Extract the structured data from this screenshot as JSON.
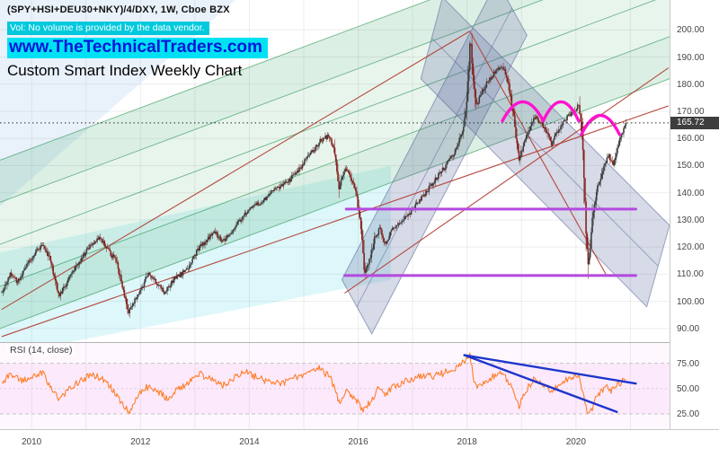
{
  "header": {
    "symbol_line": "(SPY+HSI+DEU30+NKY)/4/DXY, 1W, Cboe BZX",
    "vol_note": "Vol: No volume is provided by the data vendor.",
    "website": "www.TheTechnicalTraders.com",
    "chart_title": "Custom Smart Index Weekly Chart"
  },
  "rsi_label": "RSI (14, close)",
  "price_axis": {
    "ticks": [
      "200.00",
      "190.00",
      "180.00",
      "170.00",
      "160.00",
      "150.00",
      "140.00",
      "130.00",
      "120.00",
      "110.00",
      "100.00",
      "90.00"
    ],
    "last_price": "165.72"
  },
  "rsi_axis": {
    "ticks": [
      "75.00",
      "50.00",
      "25.00"
    ]
  },
  "time_axis": {
    "ticks": [
      "2010",
      "2012",
      "2014",
      "2016",
      "2018",
      "2020"
    ]
  },
  "colors": {
    "candle_up": "#3c3c3c",
    "candle_down": "#84231e",
    "rsi_line": "#ff7f2a",
    "rsi_trend_blue": "#1e36cc",
    "sr_purple": "#b44ae0",
    "arc_magenta": "#ff12cf",
    "red_trend": "#b03a2e",
    "green_channel": "#22a052",
    "blue_channel": "#56669b",
    "cyan_band": "#00becf",
    "badge_bg": "#3e3e3e",
    "header_cyan": "#00e2f4",
    "website_blue": "#0016d9"
  },
  "chart_data": {
    "type": "candlestick",
    "title": "Custom Smart Index Weekly Chart",
    "symbol": "(SPY+HSI+DEU30+NKY)/4/DXY",
    "timeframe": "1W",
    "exchange": "Cboe BZX",
    "xlim": [
      2009.42,
      2021.72
    ],
    "ylim": [
      85,
      211
    ],
    "rsi_ylim": [
      10,
      95
    ],
    "last_close": 165.72,
    "price_keypoints": [
      [
        2009.45,
        103
      ],
      [
        2009.6,
        110
      ],
      [
        2009.75,
        107
      ],
      [
        2009.9,
        113
      ],
      [
        2010.05,
        117
      ],
      [
        2010.2,
        121
      ],
      [
        2010.35,
        115
      ],
      [
        2010.5,
        102
      ],
      [
        2010.65,
        107
      ],
      [
        2010.8,
        112
      ],
      [
        2010.95,
        117
      ],
      [
        2011.1,
        121
      ],
      [
        2011.25,
        124
      ],
      [
        2011.4,
        119
      ],
      [
        2011.55,
        115
      ],
      [
        2011.7,
        103
      ],
      [
        2011.78,
        96
      ],
      [
        2011.9,
        101
      ],
      [
        2012.0,
        104
      ],
      [
        2012.15,
        110
      ],
      [
        2012.3,
        107
      ],
      [
        2012.45,
        103
      ],
      [
        2012.6,
        108
      ],
      [
        2012.75,
        110
      ],
      [
        2012.9,
        113
      ],
      [
        2013.05,
        119
      ],
      [
        2013.2,
        122
      ],
      [
        2013.35,
        126
      ],
      [
        2013.5,
        122
      ],
      [
        2013.65,
        125
      ],
      [
        2013.8,
        129
      ],
      [
        2013.95,
        133
      ],
      [
        2014.1,
        135
      ],
      [
        2014.25,
        137
      ],
      [
        2014.4,
        140
      ],
      [
        2014.55,
        142
      ],
      [
        2014.7,
        144
      ],
      [
        2014.85,
        147
      ],
      [
        2015.0,
        151
      ],
      [
        2015.15,
        155
      ],
      [
        2015.3,
        159
      ],
      [
        2015.45,
        161
      ],
      [
        2015.55,
        157
      ],
      [
        2015.65,
        142
      ],
      [
        2015.75,
        149
      ],
      [
        2015.85,
        146
      ],
      [
        2015.95,
        141
      ],
      [
        2016.05,
        128
      ],
      [
        2016.12,
        110
      ],
      [
        2016.2,
        115
      ],
      [
        2016.3,
        123
      ],
      [
        2016.4,
        127
      ],
      [
        2016.5,
        121
      ],
      [
        2016.6,
        126
      ],
      [
        2016.75,
        129
      ],
      [
        2016.9,
        131
      ],
      [
        2017.05,
        135
      ],
      [
        2017.2,
        139
      ],
      [
        2017.35,
        143
      ],
      [
        2017.5,
        147
      ],
      [
        2017.65,
        151
      ],
      [
        2017.8,
        156
      ],
      [
        2017.92,
        163
      ],
      [
        2018.0,
        175
      ],
      [
        2018.06,
        197
      ],
      [
        2018.1,
        186
      ],
      [
        2018.16,
        172
      ],
      [
        2018.25,
        176
      ],
      [
        2018.35,
        180
      ],
      [
        2018.45,
        183
      ],
      [
        2018.55,
        185
      ],
      [
        2018.65,
        187
      ],
      [
        2018.75,
        181
      ],
      [
        2018.85,
        169
      ],
      [
        2018.95,
        152
      ],
      [
        2019.05,
        158
      ],
      [
        2019.15,
        164
      ],
      [
        2019.25,
        168
      ],
      [
        2019.35,
        166
      ],
      [
        2019.45,
        163
      ],
      [
        2019.55,
        158
      ],
      [
        2019.65,
        162
      ],
      [
        2019.75,
        166
      ],
      [
        2019.85,
        168
      ],
      [
        2019.95,
        170
      ],
      [
        2020.05,
        172
      ],
      [
        2020.12,
        160
      ],
      [
        2020.18,
        128
      ],
      [
        2020.23,
        113
      ],
      [
        2020.3,
        130
      ],
      [
        2020.4,
        142
      ],
      [
        2020.5,
        149
      ],
      [
        2020.6,
        154
      ],
      [
        2020.68,
        150
      ],
      [
        2020.76,
        157
      ],
      [
        2020.84,
        162
      ],
      [
        2020.92,
        165.72
      ]
    ],
    "rsi_keypoints": [
      [
        2009.45,
        56
      ],
      [
        2009.6,
        63
      ],
      [
        2009.8,
        58
      ],
      [
        2010.0,
        60
      ],
      [
        2010.2,
        66
      ],
      [
        2010.4,
        48
      ],
      [
        2010.5,
        38
      ],
      [
        2010.7,
        50
      ],
      [
        2010.9,
        58
      ],
      [
        2011.1,
        63
      ],
      [
        2011.3,
        60
      ],
      [
        2011.5,
        48
      ],
      [
        2011.7,
        32
      ],
      [
        2011.8,
        28
      ],
      [
        2011.95,
        42
      ],
      [
        2012.1,
        52
      ],
      [
        2012.3,
        48
      ],
      [
        2012.5,
        40
      ],
      [
        2012.7,
        50
      ],
      [
        2012.9,
        56
      ],
      [
        2013.1,
        64
      ],
      [
        2013.3,
        60
      ],
      [
        2013.5,
        52
      ],
      [
        2013.7,
        60
      ],
      [
        2013.9,
        67
      ],
      [
        2014.1,
        62
      ],
      [
        2014.3,
        58
      ],
      [
        2014.5,
        55
      ],
      [
        2014.7,
        57
      ],
      [
        2014.9,
        62
      ],
      [
        2015.1,
        66
      ],
      [
        2015.3,
        70
      ],
      [
        2015.5,
        60
      ],
      [
        2015.65,
        36
      ],
      [
        2015.8,
        48
      ],
      [
        2015.95,
        40
      ],
      [
        2016.1,
        28
      ],
      [
        2016.25,
        40
      ],
      [
        2016.4,
        52
      ],
      [
        2016.5,
        44
      ],
      [
        2016.65,
        52
      ],
      [
        2016.8,
        56
      ],
      [
        2017.0,
        60
      ],
      [
        2017.2,
        63
      ],
      [
        2017.4,
        62
      ],
      [
        2017.6,
        66
      ],
      [
        2017.8,
        69
      ],
      [
        2017.95,
        78
      ],
      [
        2018.05,
        83
      ],
      [
        2018.12,
        60
      ],
      [
        2018.2,
        52
      ],
      [
        2018.35,
        58
      ],
      [
        2018.5,
        62
      ],
      [
        2018.65,
        65
      ],
      [
        2018.8,
        54
      ],
      [
        2018.95,
        33
      ],
      [
        2019.1,
        50
      ],
      [
        2019.25,
        60
      ],
      [
        2019.4,
        55
      ],
      [
        2019.55,
        47
      ],
      [
        2019.7,
        54
      ],
      [
        2019.85,
        60
      ],
      [
        2019.95,
        62
      ],
      [
        2020.05,
        63
      ],
      [
        2020.15,
        40
      ],
      [
        2020.23,
        22
      ],
      [
        2020.35,
        38
      ],
      [
        2020.45,
        46
      ],
      [
        2020.55,
        52
      ],
      [
        2020.65,
        48
      ],
      [
        2020.75,
        53
      ],
      [
        2020.85,
        57
      ],
      [
        2020.92,
        59
      ]
    ],
    "overlays": {
      "price_line": 165.72,
      "support_resistance": [
        {
          "price": 134.0,
          "x1": 2015.78,
          "x2": 2021.1
        },
        {
          "price": 109.5,
          "x1": 2015.75,
          "x2": 2021.1
        }
      ],
      "arcs": [
        {
          "x1": 2018.65,
          "x2": 2019.4,
          "base": 166.5,
          "peak": 173.5
        },
        {
          "x1": 2019.4,
          "x2": 2020.05,
          "base": 166.5,
          "peak": 173.5
        },
        {
          "x1": 2020.1,
          "x2": 2020.8,
          "base": 161.5,
          "peak": 168.5
        }
      ],
      "red_trendlines": [
        [
          2009.45,
          97,
          2018.05,
          199.5
        ],
        [
          2018.05,
          199.5,
          2020.55,
          110
        ],
        [
          2009.45,
          87,
          2021.7,
          172
        ],
        [
          2015.75,
          103,
          2021.7,
          186
        ]
      ],
      "green_channel": {
        "top": [
          2009.42,
          152,
          2021.72,
          244
        ],
        "bottom": [
          2009.42,
          90,
          2021.72,
          182
        ],
        "lines": [
          0,
          0.25,
          0.5,
          0.75,
          1
        ]
      },
      "blue_channel_up": [
        [
          2015.7,
          108
        ],
        [
          2018.55,
          218
        ],
        [
          2019.1,
          198
        ],
        [
          2016.25,
          88
        ]
      ],
      "blue_channel_down": [
        [
          2017.55,
          212
        ],
        [
          2021.72,
          128
        ],
        [
          2021.3,
          98
        ],
        [
          2017.15,
          182
        ]
      ],
      "cyan_band": [
        [
          2009.42,
          118
        ],
        [
          2016.6,
          150
        ],
        [
          2016.6,
          108
        ],
        [
          2009.42,
          80
        ]
      ],
      "blue_wedge_topleft": [
        [
          2009.42,
          135
        ],
        [
          2009.42,
          212
        ],
        [
          2013.8,
          212
        ]
      ],
      "rsi_band": {
        "upper": 75,
        "mid": 50,
        "lower": 25
      },
      "rsi_blue_lines": [
        [
          2017.95,
          83,
          2021.1,
          55
        ],
        [
          2017.95,
          83,
          2020.75,
          27
        ]
      ]
    }
  }
}
